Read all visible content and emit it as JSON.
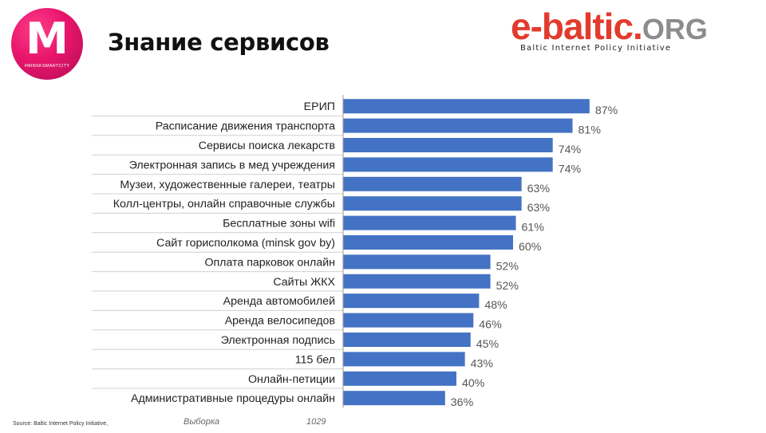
{
  "logo": {
    "letter": "M",
    "subtext": "#MINSKSMARTCITY"
  },
  "page": {
    "title": "Знание сервисов"
  },
  "brand": {
    "name_main": "e-baltic.",
    "name_tld": "ORG",
    "tagline": "Baltic Internet Policy Initiative"
  },
  "footer": {
    "source": "Source: Baltic Internet Policy Initiative,",
    "sample_label": "Выборка",
    "sample_value": "1029"
  },
  "colors": {
    "bar": "#4472c4",
    "title": "#111111",
    "brand_red": "#e23b2d",
    "brand_gray": "#8c8c8c",
    "logo_pink": "#e8156b"
  },
  "chart_data": {
    "type": "bar",
    "orientation": "horizontal",
    "categories": [
      "ЕРИП",
      "Расписание движения транспорта",
      "Сервисы поиска лекарств",
      "Электронная запись в мед учреждения",
      "Музеи, художественные галереи, театры",
      "Колл-центры, онлайн справочные службы",
      "Бесплатные зоны wifi",
      "Сайт горисполкома (minsk gov by)",
      "Оплата парковок  онлайн",
      "Сайты ЖКХ",
      "Аренда автомобилей",
      "Аренда велосипедов",
      "Электронная подпись",
      "115 бел",
      "Онлайн-петиции",
      "Административные процедуры онлайн"
    ],
    "values": [
      87,
      81,
      74,
      74,
      63,
      63,
      61,
      60,
      52,
      52,
      48,
      46,
      45,
      43,
      40,
      36
    ],
    "data_labels": [
      "87%",
      "81%",
      "74%",
      "74%",
      "63%",
      "63%",
      "61%",
      "60%",
      "52%",
      "52%",
      "48%",
      "46%",
      "45%",
      "43%",
      "40%",
      "36%"
    ],
    "xlim": [
      0,
      100
    ],
    "grid": false
  }
}
